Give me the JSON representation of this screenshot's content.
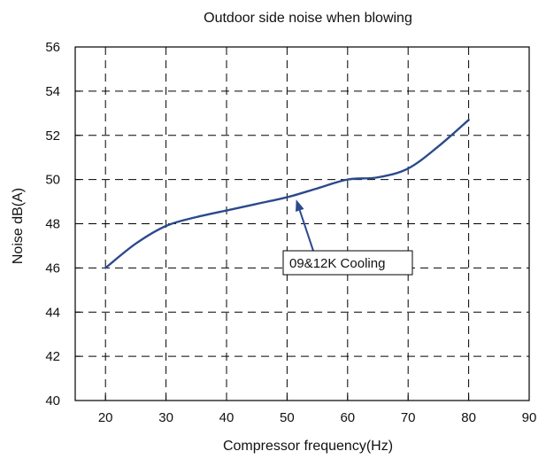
{
  "chart_data": {
    "type": "line",
    "title": "Outdoor side noise when blowing",
    "xlabel": "Compressor frequency(Hz)",
    "ylabel": "Noise dB(A)",
    "xlim": [
      15,
      90
    ],
    "ylim": [
      40,
      56
    ],
    "x_ticks": [
      20,
      30,
      40,
      50,
      60,
      70,
      80,
      90
    ],
    "y_ticks": [
      40,
      42,
      44,
      46,
      48,
      50,
      52,
      54,
      56
    ],
    "grid": true,
    "grid_style": "dashed",
    "series": [
      {
        "name": "09&12K Cooling",
        "color": "#2b4a8c",
        "x": [
          20,
          25,
          30,
          35,
          40,
          45,
          50,
          55,
          60,
          65,
          70,
          75,
          80
        ],
        "y": [
          46.0,
          47.1,
          47.9,
          48.3,
          48.6,
          48.9,
          49.2,
          49.6,
          50.0,
          50.1,
          50.5,
          51.5,
          52.7
        ]
      }
    ],
    "annotations": [
      {
        "text": "09&12K Cooling",
        "arrow_target": {
          "x": 51.5,
          "y": 49.1
        }
      }
    ]
  }
}
